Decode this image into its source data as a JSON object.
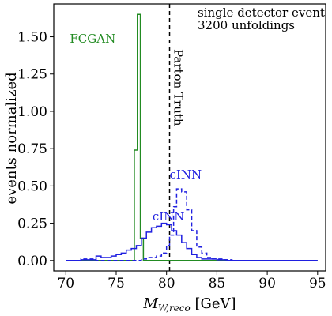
{
  "chart_data": {
    "type": "line",
    "xlabel_main": "M",
    "xlabel_sub": "W,reco",
    "xlabel_unit": " [GeV]",
    "ylabel": "events normalized",
    "xlim": [
      68.8,
      95.8
    ],
    "ylim": [
      -0.07,
      1.72
    ],
    "xticks": [
      70,
      75,
      80,
      85,
      90,
      95
    ],
    "xtick_labels": [
      "70",
      "75",
      "80",
      "85",
      "90",
      "95"
    ],
    "yticks": [
      0.0,
      0.25,
      0.5,
      0.75,
      1.0,
      1.25,
      1.5
    ],
    "ytick_labels": [
      "0.00",
      "0.25",
      "0.50",
      "0.75",
      "1.00",
      "1.25",
      "1.50"
    ],
    "annotation_lines": [
      "single detector event",
      "3200 unfoldings"
    ],
    "parton_truth": {
      "x": 80.3,
      "label": "Parton Truth",
      "color": "#000000"
    },
    "series": [
      {
        "name": "FCGAN",
        "color": "#228b22",
        "style": "solid",
        "label_at": [
          70.4,
          1.46
        ],
        "edges": [
          70.0,
          76.8,
          77.1,
          77.4,
          77.7,
          95.0
        ],
        "values": [
          0.0,
          0.74,
          1.65,
          0.15,
          0.0
        ]
      },
      {
        "name": "cINN",
        "color": "#1f1fe0",
        "style": "dashed",
        "label_at": [
          80.3,
          0.55
        ],
        "edges": [
          70.0,
          71.5,
          73.0,
          77.5,
          78.0,
          78.5,
          79.0,
          79.5,
          80.0,
          80.3,
          80.7,
          81.0,
          81.5,
          82.0,
          82.5,
          83.0,
          83.5,
          84.0,
          84.5,
          85.5,
          86.5,
          95.0
        ],
        "values": [
          0.0,
          0.01,
          0.0,
          0.01,
          0.02,
          0.02,
          0.03,
          0.05,
          0.1,
          0.17,
          0.36,
          0.48,
          0.46,
          0.34,
          0.2,
          0.09,
          0.05,
          0.02,
          0.01,
          0.005,
          0.0
        ]
      },
      {
        "name": "cINN",
        "color": "#1f1fe0",
        "style": "solid",
        "label_at": [
          78.6,
          0.27
        ],
        "edges": [
          70.0,
          71.5,
          73.0,
          73.5,
          74.0,
          74.5,
          75.0,
          75.5,
          76.0,
          76.5,
          77.0,
          77.5,
          78.0,
          78.5,
          79.0,
          79.5,
          80.0,
          80.5,
          81.0,
          81.5,
          82.0,
          82.5,
          83.0,
          83.5,
          84.0,
          85.0,
          86.0,
          95.0
        ],
        "values": [
          0.0,
          0.005,
          0.03,
          0.02,
          0.02,
          0.03,
          0.04,
          0.05,
          0.07,
          0.08,
          0.1,
          0.15,
          0.19,
          0.22,
          0.23,
          0.25,
          0.24,
          0.2,
          0.17,
          0.12,
          0.08,
          0.04,
          0.02,
          0.01,
          0.01,
          0.005,
          0.0
        ]
      }
    ]
  }
}
